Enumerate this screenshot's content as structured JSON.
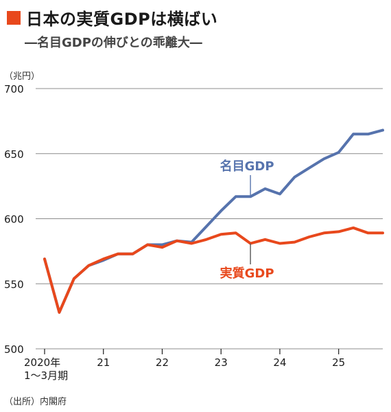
{
  "title": "日本の実質GDPは横ばい",
  "subtitle": "―名目GDPの伸びとの乖離大―",
  "unit": "（兆円）",
  "source": "（出所）内閣府",
  "colors": {
    "nominal": "#5673ad",
    "real": "#e8481c",
    "grid": "#8c8c8c"
  },
  "chart_data": {
    "type": "line",
    "title": "日本の実質GDPは横ばい",
    "ylabel": "（兆円）",
    "ylim": [
      500,
      700
    ],
    "yticks": [
      500,
      550,
      600,
      650,
      700
    ],
    "xlim": [
      2020.0,
      2025.75
    ],
    "xticks": [
      {
        "x": 2020,
        "label": "2020年",
        "sublabel": "1～3月期"
      },
      {
        "x": 2021,
        "label": "21"
      },
      {
        "x": 2022,
        "label": "22"
      },
      {
        "x": 2023,
        "label": "23"
      },
      {
        "x": 2024,
        "label": "24"
      },
      {
        "x": 2025,
        "label": "25"
      }
    ],
    "grid": true,
    "series": [
      {
        "name": "名目GDP",
        "color": "#5673ad",
        "x": [
          2022.5,
          2022.75,
          2023.0,
          2023.25,
          2023.5,
          2023.75,
          2024.0,
          2024.25,
          2024.5,
          2024.75,
          2025.0,
          2025.25,
          2025.5,
          2025.75
        ],
        "y": [
          582,
          594,
          606,
          617,
          617,
          623,
          619,
          632,
          639,
          646,
          651,
          665,
          665,
          668
        ]
      },
      {
        "name": "実質GDP",
        "color": "#e8481c",
        "x": [
          2020.0,
          2020.25,
          2020.5,
          2020.75,
          2021.0,
          2021.25,
          2021.5,
          2021.75,
          2022.0,
          2022.25,
          2022.5,
          2022.75,
          2023.0,
          2023.25,
          2023.5,
          2023.75,
          2024.0,
          2024.25,
          2024.5,
          2024.75,
          2025.0,
          2025.25,
          2025.5,
          2025.75
        ],
        "y": [
          569,
          528,
          554,
          564,
          569,
          573,
          573,
          580,
          578,
          583,
          581,
          584,
          588,
          589,
          581,
          584,
          581,
          582,
          586,
          589,
          590,
          593,
          589,
          589
        ]
      }
    ],
    "nominal_prefix": {
      "x": [
        2020.0,
        2020.25,
        2020.5,
        2020.75,
        2021.0,
        2021.25,
        2021.5,
        2021.75,
        2022.0,
        2022.25
      ],
      "y": [
        569,
        528,
        554,
        564,
        568,
        573,
        573,
        580,
        580,
        583
      ]
    },
    "annotations": [
      {
        "text": "名目GDP",
        "series": "名目GDP",
        "x": 2023.5,
        "y": 617
      },
      {
        "text": "実質GDP",
        "series": "実質GDP",
        "x": 2023.5,
        "y": 581
      }
    ]
  }
}
